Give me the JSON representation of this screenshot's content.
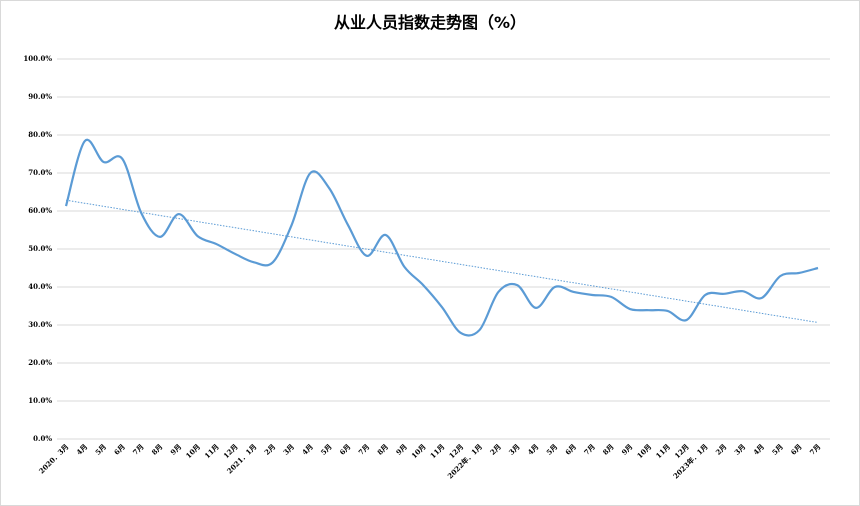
{
  "chart_data": {
    "type": "line",
    "title": "从业人员指数走势图（%）",
    "categories": [
      "2020．3月",
      "4月",
      "5月",
      "6月",
      "7月",
      "8月",
      "9月",
      "10月",
      "11月",
      "12月",
      "2021．1月",
      "2月",
      "3月",
      "4月",
      "5月",
      "6月",
      "7月",
      "8月",
      "9月",
      "10月",
      "11月",
      "12月",
      "2022年．1月",
      "2月",
      "3月",
      "4月",
      "5月",
      "6月",
      "7月",
      "8月",
      "9月",
      "10月",
      "11月",
      "12月",
      "2023年．1月",
      "2月",
      "3月",
      "4月",
      "5月",
      "6月",
      "7月"
    ],
    "series": [
      {
        "color": "#5b9bd5",
        "values": [
          61.3,
          78.4,
          72.9,
          73.7,
          59.5,
          53.2,
          59.2,
          53.4,
          51.3,
          48.7,
          46.5,
          46.5,
          56.3,
          70,
          66,
          56.3,
          48.2,
          53.7,
          45.3,
          40.5,
          34.7,
          27.9,
          28.7,
          38.7,
          40.5,
          34.5,
          40,
          38.7,
          37.9,
          37.4,
          34.2,
          33.9,
          33.7,
          31.3,
          37.9,
          38.2,
          38.9,
          37.1,
          42.9,
          43.7,
          45
        ]
      }
    ],
    "trendline": true,
    "ylim": [
      0,
      100
    ],
    "yticks": [
      {
        "value": 0,
        "label": "0.0%"
      },
      {
        "value": 10,
        "label": "10.0%"
      },
      {
        "value": 20,
        "label": "20.0%"
      },
      {
        "value": 30,
        "label": "30.0%"
      },
      {
        "value": 40,
        "label": "40.0%"
      },
      {
        "value": 50,
        "label": "50.0%"
      },
      {
        "value": 60,
        "label": "60.0%"
      },
      {
        "value": 70,
        "label": "70.0%"
      },
      {
        "value": 80,
        "label": "80.0%"
      },
      {
        "value": 90,
        "label": "90.0%"
      },
      {
        "value": 100,
        "label": "100.0%"
      }
    ],
    "grid": true
  }
}
